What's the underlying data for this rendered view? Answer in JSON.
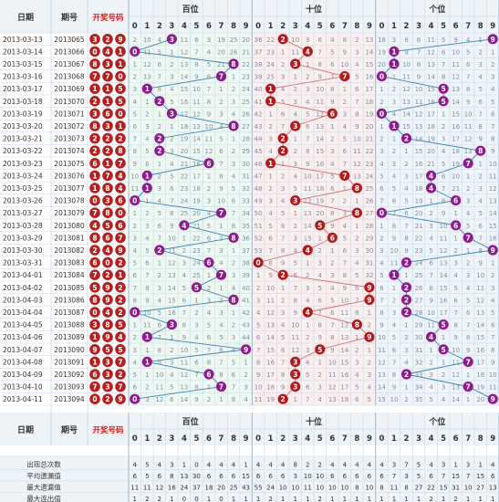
{
  "headers": {
    "date": "日期",
    "issue": "期号",
    "draw": "开奖号码",
    "sections": [
      "百位",
      "十位",
      "个位"
    ],
    "digits": [
      "0",
      "1",
      "2",
      "3",
      "4",
      "5",
      "6",
      "7",
      "8",
      "9"
    ]
  },
  "colors": {
    "bg": "#ffffff",
    "header_bg": "#eef3f8",
    "grid": "#c8d8e6",
    "text": "#333333",
    "miss_text": "#7d8fa4",
    "red_title": "#d32020",
    "section_bg": [
      "#eef8f2",
      "#fbeeee",
      "#eef4f9"
    ],
    "ball_colors": [
      "#8e1a8e",
      "#b01a1a",
      "#8e1a8e"
    ],
    "draw_ball": "#b32020",
    "line_colors": [
      "#3a86b0",
      "#d07070",
      "#3a86b0"
    ]
  },
  "chart_data": {
    "type": "table",
    "rows": [
      {
        "date": "2013-03-13",
        "issue": "2013065",
        "draw": [
          3,
          2,
          9
        ]
      },
      {
        "date": "2013-03-14",
        "issue": "2013066",
        "draw": [
          0,
          4,
          1
        ]
      },
      {
        "date": "2013-03-15",
        "issue": "2013067",
        "draw": [
          8,
          3,
          1
        ]
      },
      {
        "date": "2013-03-16",
        "issue": "2013068",
        "draw": [
          7,
          7,
          0
        ]
      },
      {
        "date": "2013-03-17",
        "issue": "2013069",
        "draw": [
          1,
          1,
          5
        ]
      },
      {
        "date": "2013-03-18",
        "issue": "2013070",
        "draw": [
          2,
          1,
          5
        ]
      },
      {
        "date": "2013-03-19",
        "issue": "2013071",
        "draw": [
          3,
          6,
          0
        ]
      },
      {
        "date": "2013-03-20",
        "issue": "2013072",
        "draw": [
          8,
          3,
          1
        ]
      },
      {
        "date": "2013-03-21",
        "issue": "2013073",
        "draw": [
          2,
          2,
          2
        ]
      },
      {
        "date": "2013-03-22",
        "issue": "2013074",
        "draw": [
          2,
          2,
          8
        ]
      },
      {
        "date": "2013-03-23",
        "issue": "2013075",
        "draw": [
          6,
          1,
          7
        ]
      },
      {
        "date": "2013-03-24",
        "issue": "2013076",
        "draw": [
          1,
          7,
          4
        ]
      },
      {
        "date": "2013-03-25",
        "issue": "2013077",
        "draw": [
          1,
          8,
          4
        ]
      },
      {
        "date": "2013-03-26",
        "issue": "2013078",
        "draw": [
          0,
          3,
          6
        ]
      },
      {
        "date": "2013-03-27",
        "issue": "2013079",
        "draw": [
          7,
          8,
          0
        ]
      },
      {
        "date": "2013-03-28",
        "issue": "2013080",
        "draw": [
          4,
          5,
          6
        ]
      },
      {
        "date": "2013-03-29",
        "issue": "2013081",
        "draw": [
          8,
          6,
          7
        ]
      },
      {
        "date": "2013-03-30",
        "issue": "2013082",
        "draw": [
          2,
          4,
          9
        ]
      },
      {
        "date": "2013-03-31",
        "issue": "2013083",
        "draw": [
          6,
          0,
          2
        ]
      },
      {
        "date": "2013-04-01",
        "issue": "2013084",
        "draw": [
          7,
          2,
          1
        ]
      },
      {
        "date": "2013-04-02",
        "issue": "2013085",
        "draw": [
          5,
          9,
          2
        ]
      },
      {
        "date": "2013-04-03",
        "issue": "2013086",
        "draw": [
          8,
          9,
          2
        ]
      },
      {
        "date": "2013-04-04",
        "issue": "2013087",
        "draw": [
          0,
          4,
          2
        ]
      },
      {
        "date": "2013-04-05",
        "issue": "2013088",
        "draw": [
          3,
          8,
          5
        ]
      },
      {
        "date": "2013-04-06",
        "issue": "2013089",
        "draw": [
          1,
          9,
          4
        ]
      },
      {
        "date": "2013-04-07",
        "issue": "2013090",
        "draw": [
          9,
          5,
          5
        ]
      },
      {
        "date": "2013-04-08",
        "issue": "2013091",
        "draw": [
          1,
          3,
          7
        ]
      },
      {
        "date": "2013-04-09",
        "issue": "2013092",
        "draw": [
          6,
          3,
          2
        ]
      },
      {
        "date": "2013-04-10",
        "issue": "2013093",
        "draw": [
          7,
          3,
          7
        ]
      },
      {
        "date": "2013-04-11",
        "issue": "2013094",
        "draw": [
          0,
          2,
          9
        ]
      }
    ],
    "stats": [
      {
        "label": "出现总次数",
        "values": [
          [
            4,
            5,
            4,
            3,
            1,
            0,
            4,
            4,
            4,
            1
          ],
          [
            4,
            4,
            4,
            8,
            2,
            2,
            4,
            4,
            4,
            4
          ],
          [
            4,
            3,
            7,
            5,
            4,
            3,
            1,
            3,
            1,
            4
          ]
        ]
      },
      {
        "label": "平均遗漏值",
        "values": [
          [
            6,
            5,
            6,
            8,
            13,
            30,
            6,
            6,
            6,
            15
          ],
          [
            6,
            6,
            6,
            3,
            10,
            10,
            6,
            6,
            6,
            6
          ],
          [
            6,
            7,
            3,
            5,
            6,
            7,
            15,
            7,
            15,
            6
          ]
        ]
      },
      {
        "label": "最大遗漏值",
        "values": [
          [
            11,
            11,
            12,
            16,
            24,
            37,
            18,
            20,
            25,
            43
          ],
          [
            55,
            24,
            10,
            10,
            11,
            10,
            10,
            10,
            8,
            10
          ],
          [
            8,
            11,
            8,
            27,
            22,
            15,
            31,
            10,
            27,
            13
          ]
        ]
      },
      {
        "label": "最大连出值",
        "values": [
          [
            1,
            2,
            2,
            1,
            0,
            0,
            1,
            0,
            1,
            1
          ],
          [
            1,
            2,
            1,
            1,
            1,
            2,
            1,
            1,
            1,
            1
          ],
          [
            1,
            1,
            1,
            1,
            2,
            1,
            2,
            1,
            1,
            1
          ]
        ]
      }
    ]
  }
}
